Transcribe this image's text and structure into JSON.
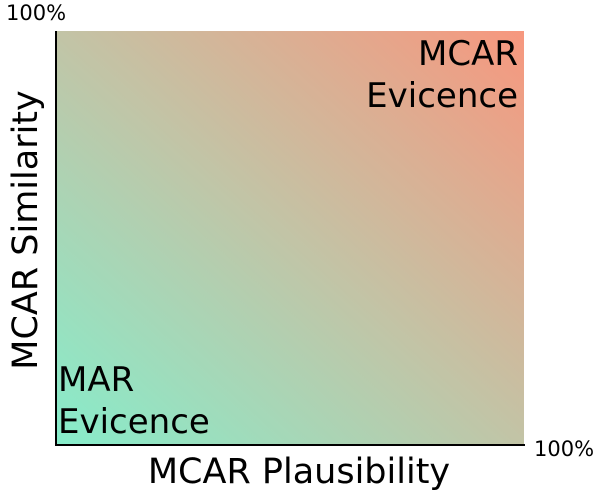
{
  "axes": {
    "x_label": "MCAR Plausibility",
    "y_label": "MCAR Similarity",
    "x_max_label": "100%",
    "y_max_label": "100%"
  },
  "regions": {
    "top_right": {
      "line1": "MCAR",
      "line2": "Evicence"
    },
    "bottom_left": {
      "line1": "MAR",
      "line2": "Evicence"
    }
  },
  "colors": {
    "bottom_left": "#86edcb",
    "middle": "#c2c4a6",
    "top_right": "#f7977e",
    "axis": "#000000"
  }
}
